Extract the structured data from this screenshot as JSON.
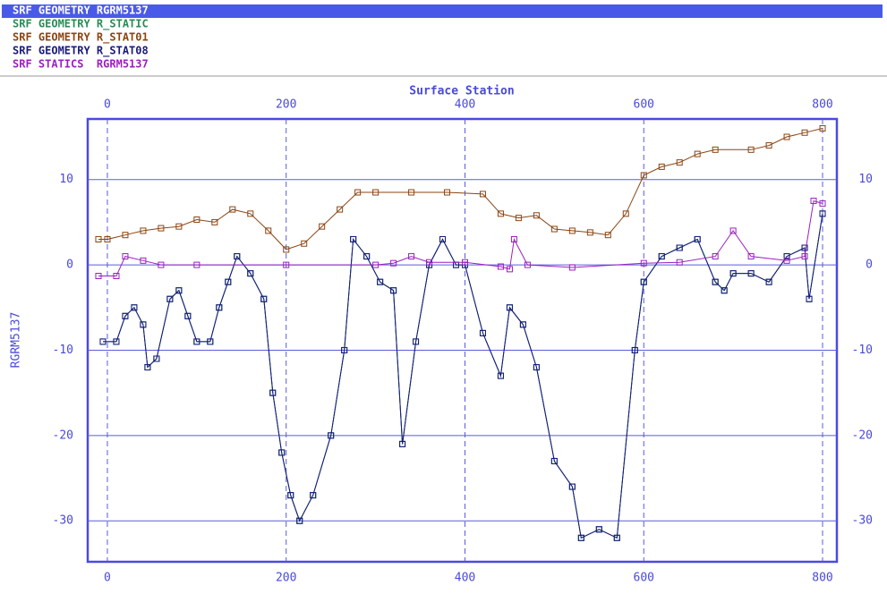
{
  "chart_data": {
    "type": "line",
    "x_label": "Surface Station",
    "y_label": "RGRM5137",
    "xlim": [
      -22,
      816
    ],
    "ylim": [
      -34.8,
      17.1
    ],
    "xticks": [
      0,
      200,
      400,
      600,
      800
    ],
    "yticks": [
      -30,
      -20,
      -10,
      0,
      10
    ],
    "grid": true,
    "series": [
      {
        "name": "SRF GEOMETRY RGRM5137",
        "color": "#3a6fd8",
        "x": [
          -5,
          10,
          20,
          30,
          40,
          45,
          55,
          70,
          80,
          90,
          100,
          115,
          125,
          135,
          145,
          160,
          175,
          185,
          195,
          205,
          215,
          230,
          250,
          265,
          275,
          290,
          305,
          320,
          330,
          345,
          360,
          375,
          390,
          400,
          420,
          440,
          450,
          465,
          480,
          500,
          520,
          530,
          550,
          570,
          590,
          600,
          620,
          640,
          660,
          680,
          690,
          700,
          720,
          740,
          760,
          780,
          785,
          800
        ],
        "values": [
          -9,
          -9,
          -6,
          -5,
          -7,
          -12,
          -11,
          -4,
          -3,
          -6,
          -9,
          -9,
          -5,
          -2,
          1,
          -1,
          -4,
          -15,
          -22,
          -27,
          -30,
          -27,
          -20,
          -10,
          3,
          1,
          -2,
          -3,
          -21,
          -9,
          0,
          3,
          0,
          0,
          -8,
          -13,
          -5,
          -7,
          -12,
          -23,
          -26,
          -32,
          -31,
          -32,
          -10,
          -2,
          1,
          2,
          3,
          -2,
          -3,
          -1,
          -1,
          -2,
          1,
          2,
          -4,
          6
        ]
      },
      {
        "name": "SRF GEOMETRY R_STATIC",
        "color": "#2a8a5a",
        "x": [
          -5,
          10,
          20,
          30,
          40,
          45,
          55,
          70,
          80,
          90,
          100,
          115,
          125,
          135,
          145,
          160,
          175,
          185,
          195,
          205,
          215,
          230,
          250,
          265,
          275,
          290,
          305,
          320,
          330,
          345,
          360,
          375,
          390,
          400,
          420,
          440,
          450,
          465,
          480,
          500,
          520,
          530,
          550,
          570,
          590,
          600,
          620,
          640,
          660,
          680,
          690,
          700,
          720,
          740,
          760,
          780,
          785,
          800
        ],
        "values": [
          -9,
          -9,
          -6,
          -5,
          -7,
          -12,
          -11,
          -4,
          -3,
          -6,
          -9,
          -9,
          -5,
          -2,
          1,
          -1,
          -4,
          -15,
          -22,
          -27,
          -30,
          -27,
          -20,
          -10,
          3,
          1,
          -2,
          -3,
          -21,
          -9,
          0,
          3,
          0,
          0,
          -8,
          -13,
          -5,
          -7,
          -12,
          -23,
          -26,
          -32,
          -31,
          -32,
          -10,
          -2,
          1,
          2,
          3,
          -2,
          -3,
          -1,
          -1,
          -2,
          1,
          2,
          -4,
          6
        ]
      },
      {
        "name": "SRF GEOMETRY R_STAT01",
        "color": "#8b4513",
        "x": [
          -10,
          0,
          20,
          40,
          60,
          80,
          100,
          120,
          140,
          160,
          180,
          200,
          220,
          240,
          260,
          280,
          300,
          340,
          380,
          420,
          440,
          460,
          480,
          500,
          520,
          540,
          560,
          580,
          600,
          620,
          640,
          660,
          680,
          720,
          740,
          760,
          780,
          800
        ],
        "values": [
          3,
          3,
          3.5,
          4,
          4.3,
          4.5,
          5.3,
          5,
          6.5,
          6,
          4,
          1.8,
          2.5,
          4.5,
          6.5,
          8.5,
          8.5,
          8.5,
          8.5,
          8.3,
          6,
          5.5,
          5.8,
          4.2,
          4,
          3.8,
          3.5,
          6,
          10.5,
          11.5,
          12,
          13,
          13.5,
          13.5,
          14,
          15,
          15.5,
          16
        ]
      },
      {
        "name": "SRF GEOMETRY R_STAT08",
        "color": "#1a1a7a",
        "x": [
          -5,
          10,
          20,
          30,
          40,
          45,
          55,
          70,
          80,
          90,
          100,
          115,
          125,
          135,
          145,
          160,
          175,
          185,
          195,
          205,
          215,
          230,
          250,
          265,
          275,
          290,
          305,
          320,
          330,
          345,
          360,
          375,
          390,
          400,
          420,
          440,
          450,
          465,
          480,
          500,
          520,
          530,
          550,
          570,
          590,
          600,
          620,
          640,
          660,
          680,
          690,
          700,
          720,
          740,
          760,
          780,
          785,
          800
        ],
        "values": [
          -9,
          -9,
          -6,
          -5,
          -7,
          -12,
          -11,
          -4,
          -3,
          -6,
          -9,
          -9,
          -5,
          -2,
          1,
          -1,
          -4,
          -15,
          -22,
          -27,
          -30,
          -27,
          -20,
          -10,
          3,
          1,
          -2,
          -3,
          -21,
          -9,
          0,
          3,
          0,
          0,
          -8,
          -13,
          -5,
          -7,
          -12,
          -23,
          -26,
          -32,
          -31,
          -32,
          -10,
          -2,
          1,
          2,
          3,
          -2,
          -3,
          -1,
          -1,
          -2,
          1,
          2,
          -4,
          6
        ]
      },
      {
        "name": "SRF STATICS  RGRM5137",
        "color": "#9b1fbf",
        "x": [
          -10,
          10,
          20,
          40,
          60,
          100,
          200,
          300,
          320,
          340,
          360,
          400,
          440,
          450,
          455,
          470,
          520,
          600,
          640,
          680,
          700,
          720,
          760,
          780,
          790,
          800
        ],
        "values": [
          -1.3,
          -1.3,
          1,
          0.5,
          0,
          0,
          0,
          0,
          0.2,
          1,
          0.3,
          0.3,
          -0.2,
          -0.5,
          3,
          0,
          -0.3,
          0.2,
          0.3,
          1,
          4,
          1,
          0.5,
          1,
          7.5,
          7.2
        ]
      }
    ]
  }
}
